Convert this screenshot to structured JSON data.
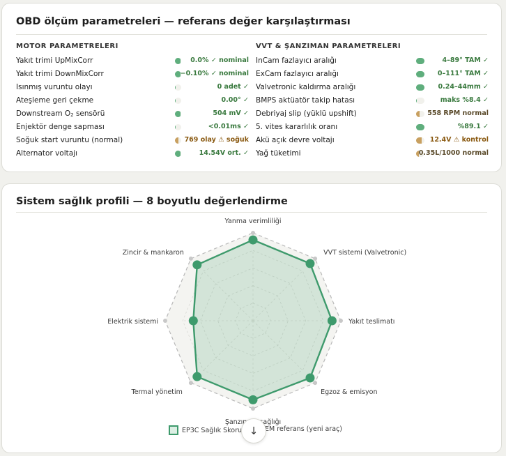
{
  "obd_card": {
    "title": "OBD ölçüm parametreleri — referans değer karşılaştırması",
    "motor": {
      "heading": "MOTOR PARAMETRELERI",
      "rows": [
        {
          "label": "Yakıt trimi UpMixCorr",
          "value": "0.0% ✓ nominal",
          "fill": 0.9,
          "color": "#5fae7d",
          "tone": "ok"
        },
        {
          "label": "Yakıt trimi DownMixCorr",
          "value": "−0.10% ✓ nominal",
          "fill": 0.9,
          "color": "#5fae7d",
          "tone": "ok"
        },
        {
          "label": "Isınmış vuruntu olayı",
          "value": "0 adet ✓",
          "fill": 0.05,
          "color": "#5fae7d",
          "tone": "ok"
        },
        {
          "label": "Ateşleme geri çekme",
          "value": "0.00° ✓",
          "fill": 0.05,
          "color": "#5fae7d",
          "tone": "ok"
        },
        {
          "label": "Downstream O",
          "label_sub": "2",
          "label_after": " sensörü",
          "value": "504 mV ✓",
          "fill": 0.9,
          "color": "#5fae7d",
          "tone": "ok"
        },
        {
          "label": "Enjektör denge sapması",
          "value": "<0.01ms ✓",
          "fill": 0.05,
          "color": "#5fae7d",
          "tone": "ok"
        },
        {
          "label": "Soğuk start vuruntu (normal)",
          "value": "769 olay ⚠ soğuk",
          "fill": 0.55,
          "color": "#c8a060",
          "tone": "warn"
        },
        {
          "label": "Alternator voltajı",
          "value": "14.54V ort. ✓",
          "fill": 0.9,
          "color": "#5fae7d",
          "tone": "ok"
        }
      ]
    },
    "vvt": {
      "heading": "VVT & ŞANZIMAN PARAMETRELERI",
      "rows": [
        {
          "label": "InCam fazlayıcı aralığı",
          "value": "4–89° TAM ✓",
          "fill": 1.0,
          "color": "#5fae7d",
          "tone": "ok"
        },
        {
          "label": "ExCam fazlayıcı aralığı",
          "value": "0–111° TAM ✓",
          "fill": 1.0,
          "color": "#5fae7d",
          "tone": "ok"
        },
        {
          "label": "Valvetronic kaldırma aralığı",
          "value": "0.24–44mm ✓",
          "fill": 1.0,
          "color": "#5fae7d",
          "tone": "ok"
        },
        {
          "label": "BMPS aktüatör takip hatası",
          "value": "maks %8.4 ✓",
          "fill": 0.1,
          "color": "#5fae7d",
          "tone": "ok"
        },
        {
          "label": "Debriyaj slip (yüklü upshift)",
          "value": "558 RPM normal",
          "fill": 0.45,
          "color": "#c8a060",
          "tone": "neutral"
        },
        {
          "label": "5. vites kararlılık oranı",
          "value": "%89.1 ✓",
          "fill": 1.0,
          "color": "#5fae7d",
          "tone": "ok"
        },
        {
          "label": "Akü açık devre voltajı",
          "value": "12.4V ⚠ kontrol",
          "fill": 0.7,
          "color": "#c8a060",
          "tone": "warn"
        },
        {
          "label": "Yağ tüketimi",
          "value": "0.35L/1000 normal",
          "fill": 0.3,
          "color": "#c8a060",
          "tone": "neutral"
        }
      ]
    }
  },
  "health_card": {
    "title": "Sistem sağlık profili — 8 boyutlu değerlendirme",
    "chart_data": {
      "type": "radar",
      "axes": [
        "Yanma verimliliği",
        "VVT sistemi (Valvetronic)",
        "Yakıt teslimatı",
        "Egzoz & emisyon",
        "Şanzıman sağlığı",
        "Termal yönetim",
        "Elektrik sistemi",
        "Zincir & mankaron"
      ],
      "range": [
        0,
        100
      ],
      "series": [
        {
          "name": "EP3C Sağlık Skoru",
          "values": [
            92,
            92,
            90,
            92,
            90,
            90,
            68,
            90
          ],
          "color": "#3e9a6c"
        },
        {
          "name": "OEM referans (yeni araç)",
          "values": [
            100,
            100,
            100,
            100,
            100,
            100,
            100,
            100
          ],
          "color": "#b9b9b9"
        }
      ]
    },
    "legend": {
      "ep3c": "EP3C Sağlık Skoru",
      "oem": "OEM referans (yeni araç)",
      "oem_visible": "EM referans (yeni araç)"
    },
    "scroll_button": {
      "icon": "arrow-down-icon",
      "glyph": "↓"
    }
  }
}
